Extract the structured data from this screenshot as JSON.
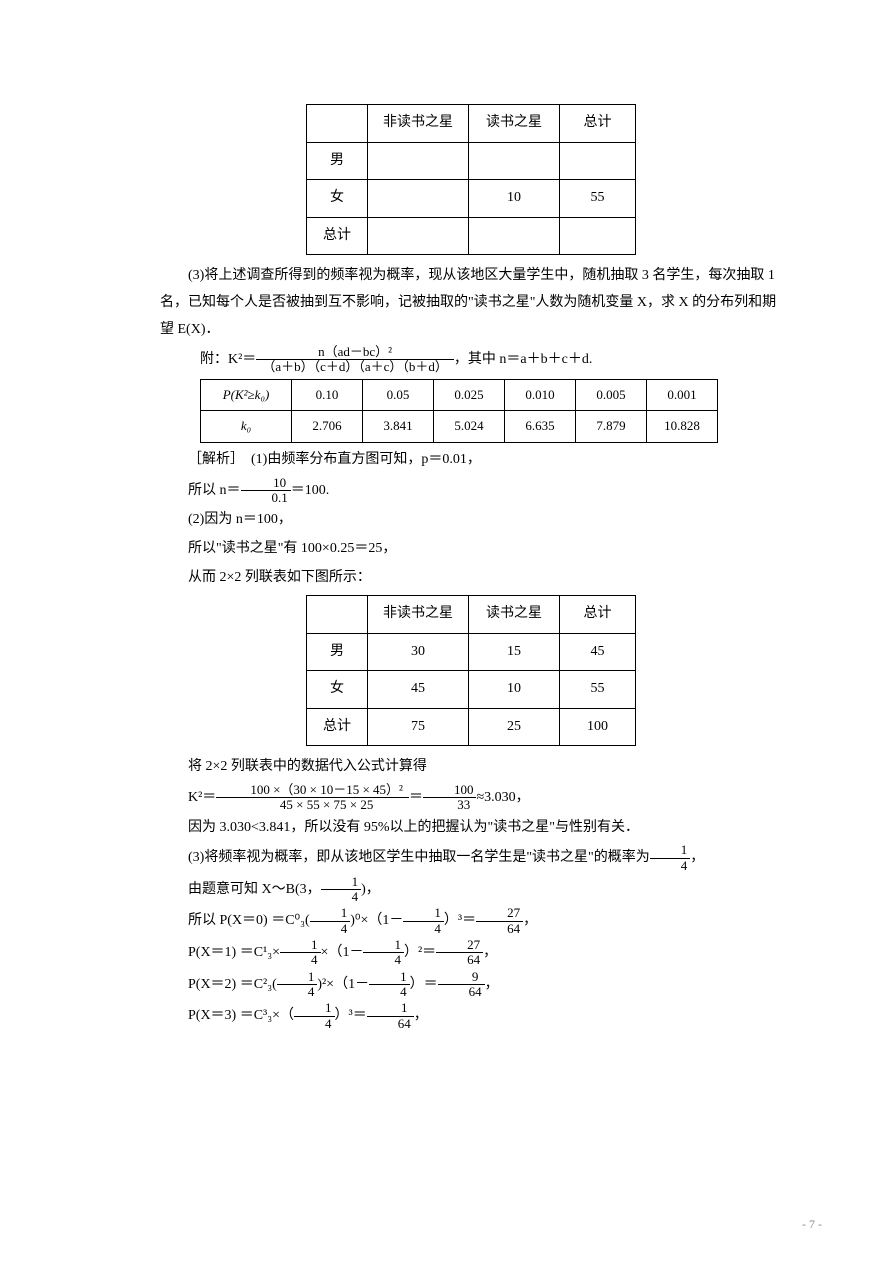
{
  "table1": {
    "h1": "非读书之星",
    "h2": "读书之星",
    "h3": "总计",
    "r1": "男",
    "r1c1": "",
    "r1c2": "",
    "r1c3": "",
    "r2": "女",
    "r2c1": "",
    "r2c2": "10",
    "r2c3": "55",
    "r3": "总计",
    "r3c1": "",
    "r3c2": "",
    "r3c3": ""
  },
  "p1": "(3)将上述调查所得到的频率视为概率，现从该地区大量学生中，随机抽取 3 名学生，每次抽取 1 名，已知每个人是否被抽到互不影响，记被抽取的\"读书之星\"人数为随机变量 X，求 X 的分布列和期望 E(X)．",
  "formula_prefix": "附：K²＝",
  "formula_suffix": "，其中 n＝a＋b＋c＋d.",
  "formula_num": "n（ad－bc）²",
  "formula_den": "（a＋b）（c＋d）（a＋c）（b＋d）",
  "ktable": {
    "h0": "P(K²≥k₀)",
    "h": [
      "0.10",
      "0.05",
      "0.025",
      "0.010",
      "0.005",
      "0.001"
    ],
    "r0": "k₀",
    "r": [
      "2.706",
      "3.841",
      "5.024",
      "6.635",
      "7.879",
      "10.828"
    ]
  },
  "sol1a": "［解析］　(1)由频率分布直方图可知，p＝0.01，",
  "sol1b_pre": "所以 n＝",
  "sol1b_num": "10",
  "sol1b_den": "0.1",
  "sol1b_post": "＝100.",
  "sol2a": "(2)因为 n＝100，",
  "sol2b": "所以\"读书之星\"有 100×0.25＝25，",
  "sol2c": "从而 2×2 列联表如下图所示：",
  "table2": {
    "h1": "非读书之星",
    "h2": "读书之星",
    "h3": "总计",
    "r1": "男",
    "r1c1": "30",
    "r1c2": "15",
    "r1c3": "45",
    "r2": "女",
    "r2c1": "45",
    "r2c2": "10",
    "r2c3": "55",
    "r3": "总计",
    "r3c1": "75",
    "r3c2": "25",
    "r3c3": "100"
  },
  "calc1": "将 2×2 列联表中的数据代入公式计算得",
  "k2_pre": "K²＝",
  "k2_num": "100 ×（30 × 10－15 × 45）²",
  "k2_den": "45 × 55 × 75 × 25",
  "k2_mid": "＝",
  "k2_num2": "100",
  "k2_den2": "33",
  "k2_post": "≈3.030，",
  "conc1": "因为 3.030<3.841，所以没有 95%以上的把握认为\"读书之星\"与性别有关．",
  "p3_pre": "(3)将频率视为概率，即从该地区学生中抽取一名学生是\"读书之星\"的概率为",
  "p3_num": "1",
  "p3_den": "4",
  "p3_post": "，",
  "bin_pre": "由题意可知 X～B(3，",
  "bin_num": "1",
  "bin_den": "4",
  "bin_post": ")，",
  "px0_pre": "所以 P(X＝0) ＝C⁰₃(",
  "px0_f1n": "1",
  "px0_f1d": "4",
  "px0_m1": ")⁰×（1－",
  "px0_f2n": "1",
  "px0_f2d": "4",
  "px0_m2": "）³＝",
  "px0_rn": "27",
  "px0_rd": "64",
  "px0_post": "，",
  "px1_pre": "P(X＝1) ＝C¹₃×",
  "px1_f1n": "1",
  "px1_f1d": "4",
  "px1_m1": "×（1－",
  "px1_f2n": "1",
  "px1_f2d": "4",
  "px1_m2": "）²＝",
  "px1_rn": "27",
  "px1_rd": "64",
  "px1_post": "，",
  "px2_pre": "P(X＝2) ＝C²₃(",
  "px2_f1n": "1",
  "px2_f1d": "4",
  "px2_m1": ")²×（1－",
  "px2_f2n": "1",
  "px2_f2d": "4",
  "px2_m2": "）＝",
  "px2_rn": "9",
  "px2_rd": "64",
  "px2_post": "，",
  "px3_pre": "P(X＝3) ＝C³₃×（",
  "px3_f1n": "1",
  "px3_f1d": "4",
  "px3_m1": "）³＝",
  "px3_rn": "1",
  "px3_rd": "64",
  "px3_post": "，",
  "pagenum": "- 7 -"
}
